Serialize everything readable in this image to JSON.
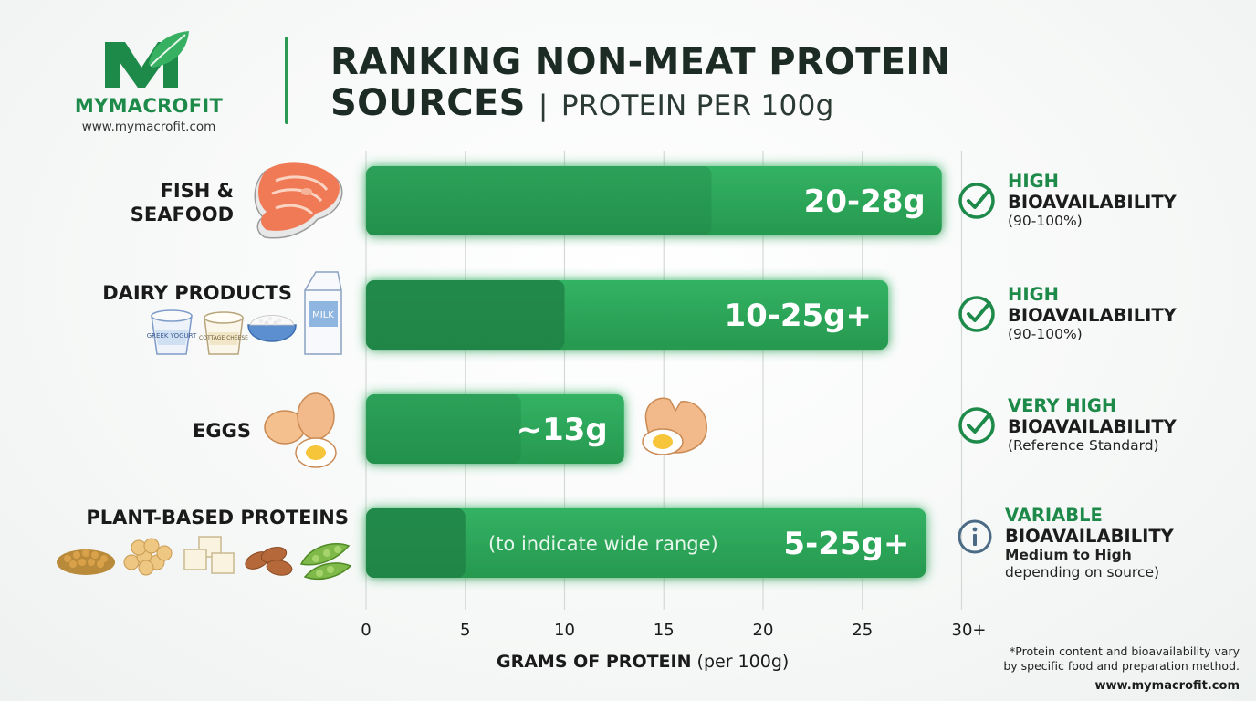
{
  "brand": {
    "name": "MYMACROFIT",
    "url": "www.mymacrofit.com"
  },
  "title": {
    "line1": "RANKING NON-MEAT PROTEIN",
    "line2": "SOURCES",
    "separator": "|",
    "subtitle": "PROTEIN PER 100g"
  },
  "chart_data": {
    "type": "bar",
    "orientation": "horizontal",
    "categories": [
      "FISH & SEAFOOD",
      "DAIRY PRODUCTS",
      "EGGS",
      "PLANT-BASED PROTEINS"
    ],
    "ranges": [
      [
        20,
        28
      ],
      [
        10,
        25
      ],
      [
        13,
        13
      ],
      [
        5,
        25
      ]
    ],
    "value_labels": [
      "20-28g",
      "10-25g+",
      "~13g",
      "5-25g+"
    ],
    "bar_ends": [
      29,
      26.3,
      13,
      28.2
    ],
    "dark_segment_ends": [
      null,
      10,
      null,
      5
    ],
    "bar_annotations": [
      "",
      "",
      "",
      "(to indicate wide range)"
    ],
    "xlabel": "GRAMS OF PROTEIN",
    "xlabel_unit": "(per 100g)",
    "x_ticks": [
      "0",
      "5",
      "10",
      "15",
      "20",
      "25",
      "30+"
    ],
    "xlim": [
      0,
      30
    ],
    "grid": true,
    "colors": {
      "bar": "#2ea85c",
      "bar_dark": "#1f8247",
      "accent": "#1e8a4a"
    }
  },
  "bioavailability": [
    {
      "level": "HIGH",
      "label": "BIOAVAILABILITY",
      "note": "(90-100%)",
      "icon": "check-icon"
    },
    {
      "level": "HIGH",
      "label": "BIOAVAILABILITY",
      "note": "(90-100%)",
      "icon": "check-icon"
    },
    {
      "level": "VERY HIGH",
      "label": "BIOAVAILABILITY",
      "note": "(Reference Standard)",
      "icon": "check-icon"
    },
    {
      "level": "VARIABLE",
      "label": "BIOAVAILABILITY",
      "note": "Medium to High",
      "note2": "depending on source)",
      "icon": "info-icon"
    }
  ],
  "footnote": {
    "line1": "*Protein content and bioavailability vary",
    "line2": "by specific food and preparation method.",
    "url": "www.mymacrofit.com"
  },
  "food_icons": [
    "salmon-steak-icon",
    "yogurt-cup-icon",
    "cottage-cheese-icon",
    "rice-bowl-icon",
    "milk-carton-icon",
    "eggs-icon",
    "cracked-egg-icon",
    "lentils-icon",
    "chickpeas-icon",
    "tofu-icon",
    "almonds-icon",
    "edamame-icon"
  ],
  "food_icon_text": {
    "milk": "MILK",
    "cup1": "GREEK YOGURT",
    "cup2": "COTTAGE CHEESE"
  }
}
